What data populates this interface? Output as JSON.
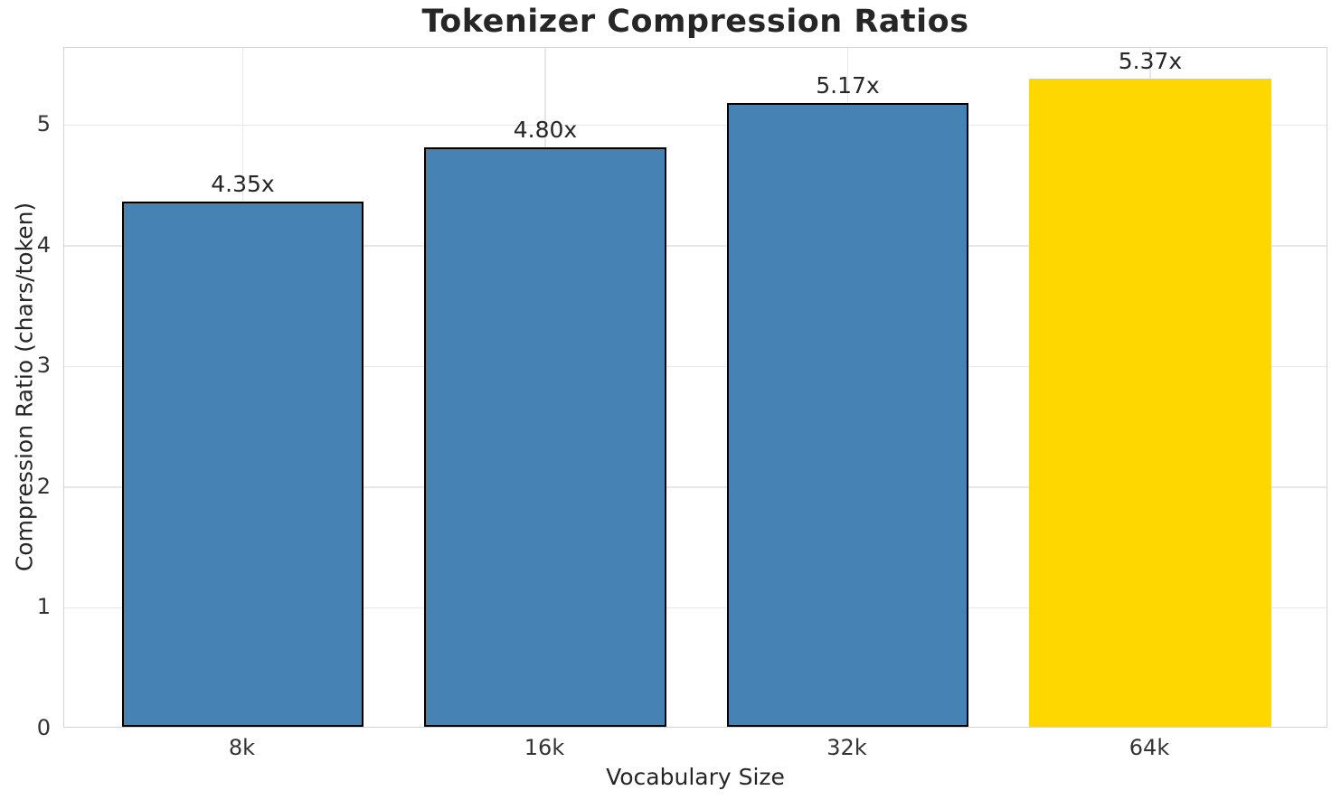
{
  "chart_data": {
    "type": "bar",
    "title": "Tokenizer Compression Ratios",
    "xlabel": "Vocabulary Size",
    "ylabel": "Compression Ratio (chars/token)",
    "categories": [
      "8k",
      "16k",
      "32k",
      "64k"
    ],
    "values": [
      4.35,
      4.8,
      5.17,
      5.37
    ],
    "value_labels": [
      "4.35x",
      "4.80x",
      "5.17x",
      "5.37x"
    ],
    "y_ticks": [
      0,
      1,
      2,
      3,
      4,
      5
    ],
    "ylim": [
      0,
      5.64
    ],
    "grid": true,
    "legend": "none",
    "bar_colors": [
      "#4682B4",
      "#4682B4",
      "#4682B4",
      "#FFD700"
    ],
    "bar_edge_colors": [
      "#000000",
      "#000000",
      "#000000",
      "none"
    ],
    "colors": {
      "default_bar": "#4682B4",
      "highlight_bar": "#FFD700",
      "bar_edge": "#000000",
      "grid": "#e7e7e7",
      "spine": "#d4d4d4",
      "text": "#262626",
      "tick_text": "#333333",
      "background": "#ffffff"
    }
  }
}
